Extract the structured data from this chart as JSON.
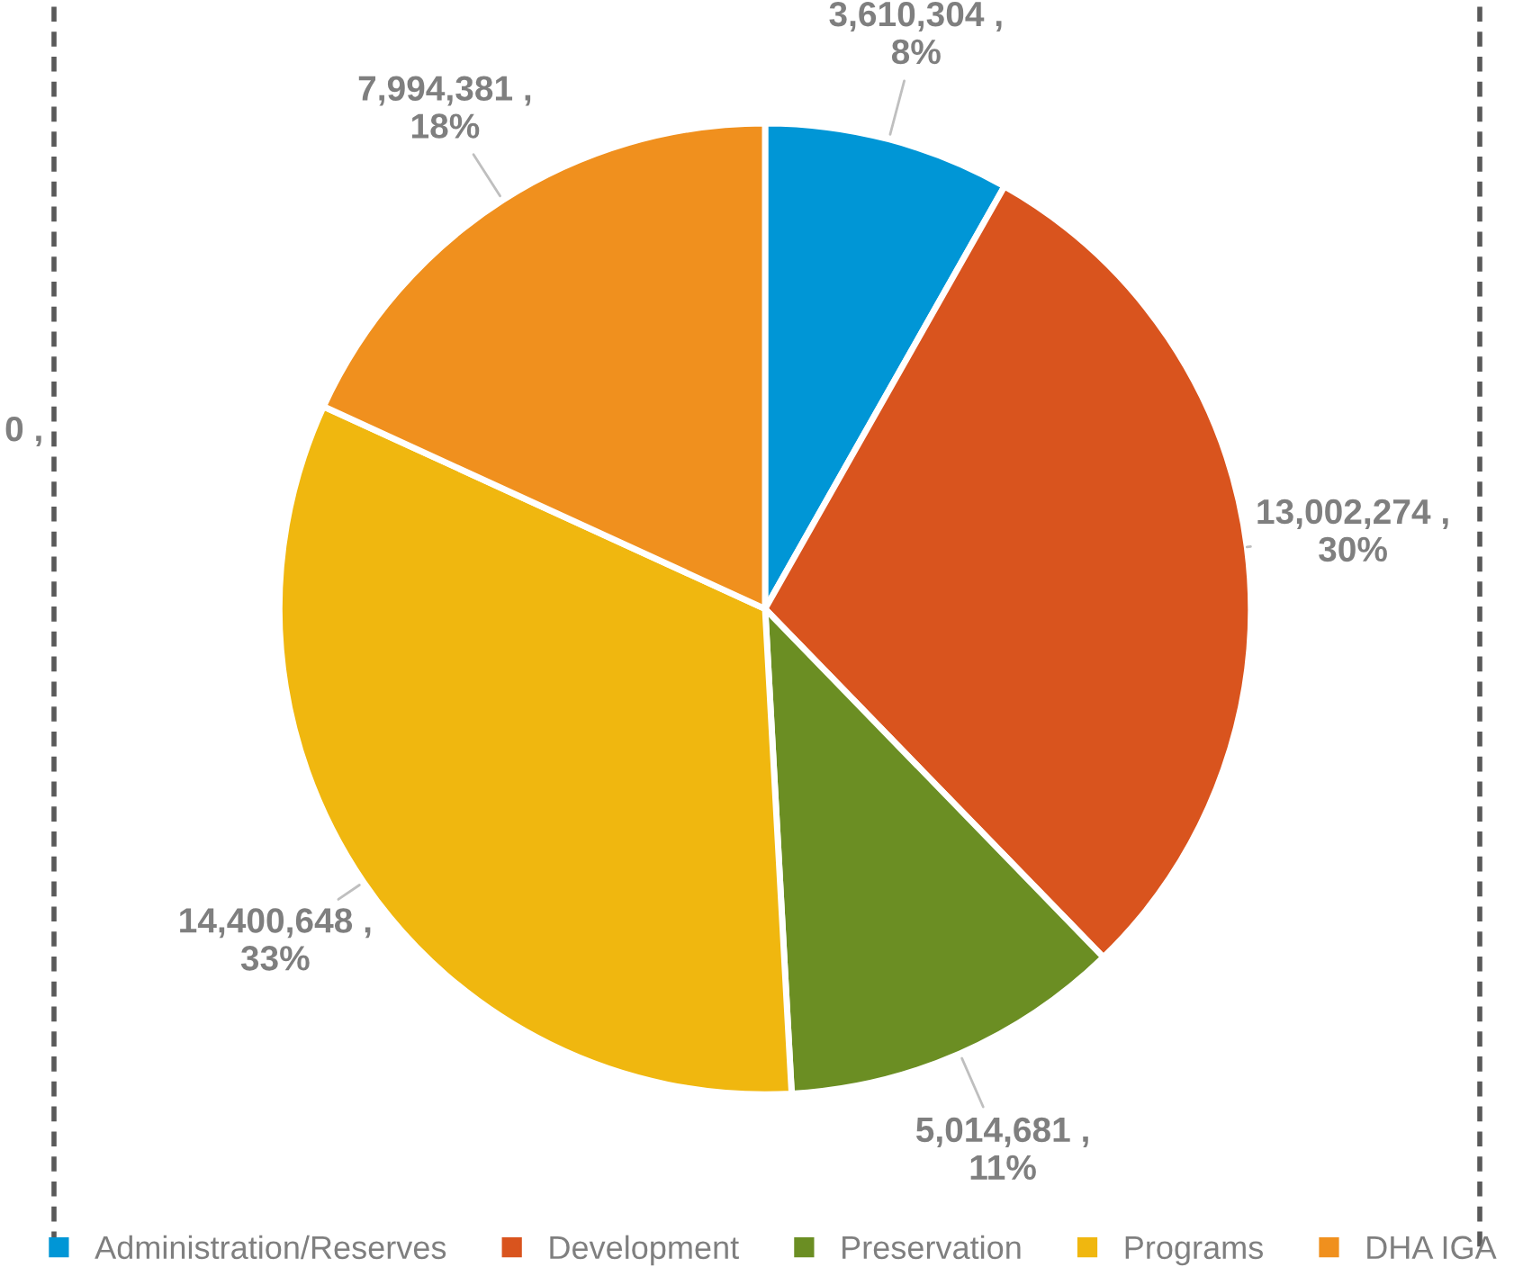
{
  "chart_data": {
    "type": "pie",
    "categories": [
      "Administration/Reserves",
      "Development",
      "Preservation",
      "Programs",
      "DHA IGA"
    ],
    "values": [
      3610304,
      13002274,
      5014681,
      14400648,
      7994381
    ],
    "colors": [
      "#0096d6",
      "#d9541e",
      "#6b8e23",
      "#f0b70f",
      "#f0901e"
    ],
    "value_labels": [
      "3,610,304 ,\n8%",
      "13,002,274 ,\n30%",
      "5,014,681 ,\n11%",
      "14,400,648 ,\n33%",
      "7,994,381 ,\n18%"
    ],
    "annotations": [
      "0 ,"
    ],
    "legend": "bottom"
  }
}
